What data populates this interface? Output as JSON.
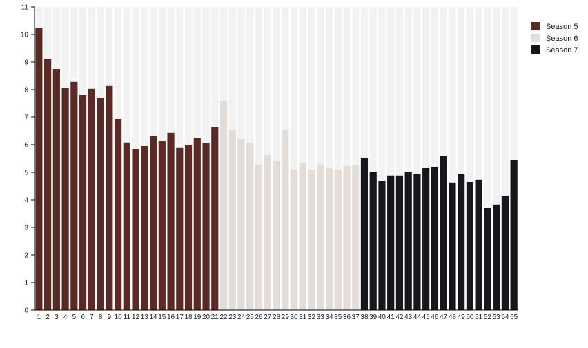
{
  "chart_data": {
    "type": "bar",
    "title": "",
    "xlabel": "",
    "ylabel": "",
    "ylim": [
      0,
      11
    ],
    "yticks": [
      0,
      1,
      2,
      3,
      4,
      5,
      6,
      7,
      8,
      9,
      10,
      11
    ],
    "grid": false,
    "background_columns": true,
    "legend_placement": "top-right",
    "categories": [
      "1",
      "2",
      "3",
      "4",
      "5",
      "6",
      "7",
      "8",
      "9",
      "10",
      "11",
      "12",
      "13",
      "14",
      "15",
      "16",
      "17",
      "18",
      "19",
      "20",
      "21",
      "22",
      "23",
      "24",
      "25",
      "26",
      "27",
      "28",
      "29",
      "30",
      "31",
      "32",
      "33",
      "34",
      "35",
      "36",
      "37",
      "38",
      "39",
      "40",
      "41",
      "42",
      "43",
      "44",
      "45",
      "46",
      "47",
      "48",
      "49",
      "50",
      "51",
      "52",
      "53",
      "54",
      "55"
    ],
    "values": [
      10.25,
      9.1,
      8.75,
      8.05,
      8.28,
      7.8,
      8.03,
      7.7,
      8.13,
      6.95,
      6.08,
      5.85,
      5.95,
      6.3,
      6.15,
      6.43,
      5.88,
      6.0,
      6.25,
      6.05,
      6.65,
      7.6,
      6.53,
      6.2,
      6.05,
      5.25,
      5.63,
      5.4,
      6.55,
      5.1,
      5.35,
      5.1,
      5.28,
      5.15,
      5.1,
      5.23,
      5.25,
      5.5,
      5.0,
      4.7,
      4.88,
      4.88,
      5.0,
      4.95,
      5.15,
      5.18,
      5.6,
      4.63,
      4.95,
      4.65,
      4.73,
      3.7,
      3.83,
      4.15,
      5.45
    ],
    "series": [
      {
        "name": "Season 5",
        "color": "#5c2a24",
        "from": 1,
        "to": 21
      },
      {
        "name": "Season 6",
        "color": "#e4ddd7",
        "from": 22,
        "to": 37
      },
      {
        "name": "Season 7",
        "color": "#17161b",
        "from": 38,
        "to": 55
      }
    ],
    "column_background_color": "#f2f2f2"
  }
}
